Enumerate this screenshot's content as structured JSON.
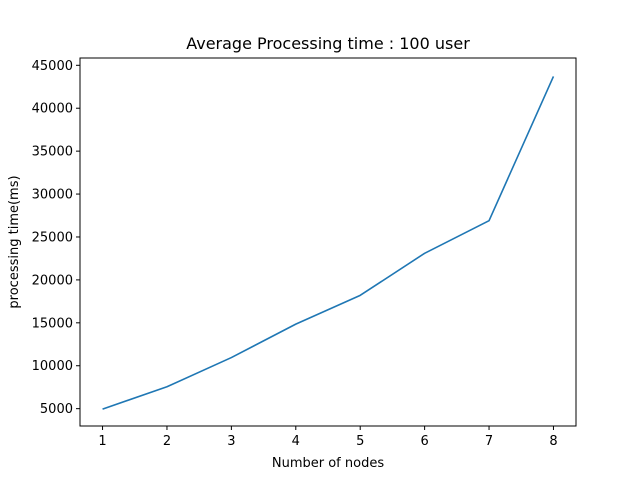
{
  "chart_data": {
    "type": "line",
    "title": "Average Processing time : 100 user",
    "xlabel": "Number of nodes",
    "ylabel": "processing time(ms)",
    "x": [
      1,
      2,
      3,
      4,
      5,
      6,
      7,
      8
    ],
    "series": [
      {
        "values": [
          4950,
          7550,
          10950,
          14850,
          18200,
          23100,
          26900,
          43700
        ],
        "color": "#1f77b4"
      }
    ],
    "xlim": [
      0.65,
      8.35
    ],
    "ylim": [
      2980,
      45850
    ],
    "xticks": [
      1,
      2,
      3,
      4,
      5,
      6,
      7,
      8
    ],
    "yticks": [
      5000,
      10000,
      15000,
      20000,
      25000,
      30000,
      35000,
      40000,
      45000
    ],
    "grid": false,
    "legend": "none"
  }
}
